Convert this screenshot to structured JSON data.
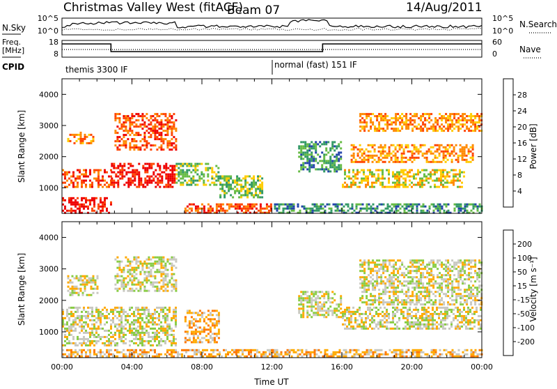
{
  "header": {
    "title": "Christmas Valley West (fitACF)",
    "beam": "Beam 07",
    "date": "14/Aug/2011"
  },
  "summary": {
    "nsky_label": "N.Sky",
    "nsearch_label": "N.Search",
    "freq_label_line1": "Freq.",
    "freq_label_line2": "[MHz]",
    "nave_label": "Nave",
    "cpid_label": "CPID",
    "noise_ticks": [
      "10^5",
      "10^0"
    ],
    "freq_ticks": [
      "18",
      "8"
    ],
    "nave_ticks": [
      "60",
      "0"
    ],
    "cpid_segments": [
      {
        "label": "themis 3300 IF",
        "start_hour": 0
      },
      {
        "label": "normal (fast) 151 IF",
        "start_hour": 12.15
      }
    ]
  },
  "chart_data": [
    {
      "type": "heatmap",
      "name": "power-panel",
      "ylabel": "Slant Range [km]",
      "ylim": [
        180,
        4500
      ],
      "yticks": [
        "1000",
        "2000",
        "3000",
        "4000"
      ],
      "xlim": [
        0,
        24
      ],
      "colorbar_label": "Power [dB]",
      "colorbar_ticks": [
        "4",
        "8",
        "12",
        "16",
        "20",
        "24",
        "28"
      ],
      "colors": [
        "#0000dd",
        "#2244aa",
        "#339966",
        "#66bb44",
        "#ffcc00",
        "#ff8800",
        "#ff4400",
        "#ee0000"
      ],
      "regions": [
        {
          "t0": 0.0,
          "t1": 2.8,
          "r0": 200,
          "r1": 700,
          "level": 7
        },
        {
          "t0": 0.0,
          "t1": 2.8,
          "r0": 1000,
          "r1": 1600,
          "level": 6
        },
        {
          "t0": 2.8,
          "t1": 6.5,
          "r0": 1000,
          "r1": 1800,
          "level": 7
        },
        {
          "t0": 0.3,
          "t1": 1.8,
          "r0": 2400,
          "r1": 2800,
          "level": 5
        },
        {
          "t0": 3.0,
          "t1": 6.5,
          "r0": 2200,
          "r1": 3400,
          "level": 6
        },
        {
          "t0": 6.5,
          "t1": 9.0,
          "r0": 1100,
          "r1": 1800,
          "level": 3
        },
        {
          "t0": 9.0,
          "t1": 11.5,
          "r0": 700,
          "r1": 1400,
          "level": 3
        },
        {
          "t0": 7.0,
          "t1": 12.0,
          "r0": 200,
          "r1": 500,
          "level": 6
        },
        {
          "t0": 12.0,
          "t1": 24.0,
          "r0": 200,
          "r1": 500,
          "level": 2
        },
        {
          "t0": 13.5,
          "t1": 16.0,
          "r0": 1500,
          "r1": 2500,
          "level": 2
        },
        {
          "t0": 16.0,
          "t1": 23.0,
          "r0": 1000,
          "r1": 1600,
          "level": 4
        },
        {
          "t0": 16.5,
          "t1": 23.5,
          "r0": 1800,
          "r1": 2400,
          "level": 5
        },
        {
          "t0": 17.0,
          "t1": 24.0,
          "r0": 2800,
          "r1": 3400,
          "level": 5
        }
      ]
    },
    {
      "type": "heatmap",
      "name": "velocity-panel",
      "ylabel": "Slant Range [km]",
      "xlabel": "Time UT",
      "ylim": [
        180,
        4500
      ],
      "yticks": [
        "1000",
        "2000",
        "3000",
        "4000"
      ],
      "xlim": [
        0,
        24
      ],
      "xticks": [
        "00:00",
        "04:00",
        "08:00",
        "12:00",
        "16:00",
        "20:00",
        "00:00"
      ],
      "colorbar_label": "Velocity [m s⁻¹]",
      "colorbar_ticks": [
        "200",
        "100",
        "50",
        "15",
        "-15",
        "-50",
        "-100",
        "-200"
      ],
      "colors": [
        "#2233bb",
        "#3388cc",
        "#33aa44",
        "#88cc44",
        "#c8c8c0",
        "#ffaa00",
        "#ff7700",
        "#ff3300",
        "#dd0000"
      ],
      "regions": [
        {
          "t0": 0.0,
          "t1": 6.5,
          "r0": 600,
          "r1": 1800,
          "level": 4
        },
        {
          "t0": 0.3,
          "t1": 2.0,
          "r0": 2200,
          "r1": 2800,
          "level": 4
        },
        {
          "t0": 3.0,
          "t1": 6.5,
          "r0": 2300,
          "r1": 3400,
          "level": 4
        },
        {
          "t0": 7.0,
          "t1": 9.0,
          "r0": 700,
          "r1": 1700,
          "level": 5
        },
        {
          "t0": 0.0,
          "t1": 12.0,
          "r0": 200,
          "r1": 450,
          "level": 5
        },
        {
          "t0": 12.0,
          "t1": 24.0,
          "r0": 200,
          "r1": 450,
          "level": 5
        },
        {
          "t0": 13.5,
          "t1": 16.0,
          "r0": 1500,
          "r1": 2300,
          "level": 4
        },
        {
          "t0": 16.0,
          "t1": 24.0,
          "r0": 1100,
          "r1": 1800,
          "level": 4
        },
        {
          "t0": 17.0,
          "t1": 24.0,
          "r0": 1900,
          "r1": 3300,
          "level": 4
        }
      ]
    }
  ]
}
